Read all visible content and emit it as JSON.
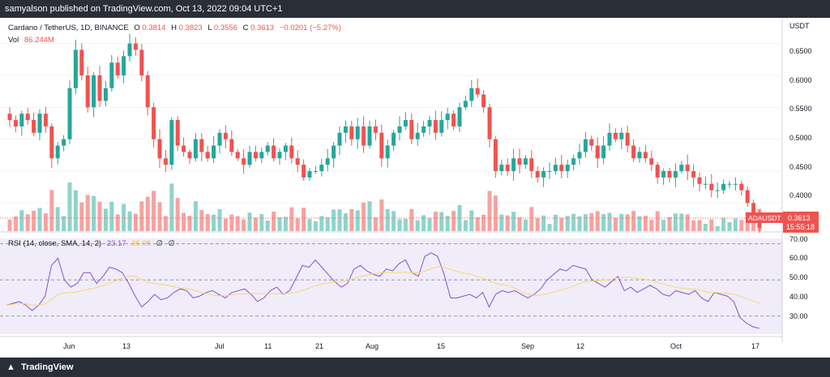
{
  "header": {
    "attribution": "samyalson published on TradingView.com, Oct 13, 2022 09:04 UTC+1"
  },
  "legend": {
    "symbol": "Cardano / TetherUS, 1D, BINANCE",
    "o_label": "O",
    "o_value": "0.3814",
    "h_label": "H",
    "h_value": "0.3823",
    "l_label": "L",
    "l_value": "0.3556",
    "c_label": "C",
    "c_value": "0.3613",
    "change": "−0.0201 (−5.27%)",
    "vol_label": "Vol",
    "vol_value": "86.244M"
  },
  "price_axis": {
    "currency": "USDT",
    "ticks": [
      "0.6500",
      "0.6000",
      "0.5500",
      "0.5000",
      "0.4500",
      "0.4000"
    ],
    "last_symbol": "ADAUSDT",
    "last_price": "0.3613",
    "countdown": "15:55:18"
  },
  "rsi_legend": {
    "label": "RSI (14, close, SMA, 14, 2)",
    "rsi_value": "23.17",
    "sma_value": "36.08",
    "extra1": "∅",
    "extra2": "∅"
  },
  "rsi_axis": {
    "ticks": [
      "70.00",
      "60.00",
      "50.00",
      "40.00",
      "30.00"
    ]
  },
  "time_axis": {
    "labels": [
      "Jun",
      "13",
      "Jul",
      "11",
      "21",
      "Aug",
      "15",
      "Sep",
      "12",
      "Oct",
      "17"
    ]
  },
  "footer": {
    "brand": "TradingView"
  },
  "colors": {
    "up": "#26a69a",
    "down": "#ef5350",
    "rsi": "#7e57c2",
    "rsi_ma": "#f5d76e",
    "vol_up": "#8fd3cb",
    "vol_down": "#f5a3a1"
  },
  "chart_data": {
    "type": "candlestick",
    "title": "Cardano / TetherUS, 1D, BINANCE",
    "ylabel": "USDT",
    "ylim": [
      0.37,
      0.68
    ],
    "closes": [
      0.53,
      0.52,
      0.54,
      0.53,
      0.51,
      0.54,
      0.52,
      0.47,
      0.49,
      0.5,
      0.58,
      0.64,
      0.6,
      0.55,
      0.6,
      0.56,
      0.58,
      0.62,
      0.6,
      0.63,
      0.65,
      0.64,
      0.6,
      0.55,
      0.5,
      0.47,
      0.46,
      0.53,
      0.49,
      0.48,
      0.47,
      0.5,
      0.48,
      0.47,
      0.49,
      0.51,
      0.5,
      0.48,
      0.47,
      0.46,
      0.48,
      0.47,
      0.48,
      0.49,
      0.47,
      0.48,
      0.49,
      0.47,
      0.46,
      0.44,
      0.45,
      0.45,
      0.46,
      0.47,
      0.49,
      0.51,
      0.52,
      0.5,
      0.52,
      0.49,
      0.52,
      0.51,
      0.47,
      0.49,
      0.51,
      0.52,
      0.53,
      0.5,
      0.51,
      0.52,
      0.53,
      0.51,
      0.53,
      0.54,
      0.52,
      0.55,
      0.56,
      0.58,
      0.57,
      0.55,
      0.5,
      0.45,
      0.46,
      0.45,
      0.47,
      0.46,
      0.47,
      0.45,
      0.44,
      0.45,
      0.45,
      0.46,
      0.45,
      0.46,
      0.47,
      0.48,
      0.5,
      0.49,
      0.47,
      0.49,
      0.51,
      0.5,
      0.51,
      0.49,
      0.47,
      0.48,
      0.47,
      0.46,
      0.44,
      0.45,
      0.44,
      0.45,
      0.46,
      0.45,
      0.44,
      0.43,
      0.43,
      0.42,
      0.42,
      0.43,
      0.43,
      0.43,
      0.42,
      0.4,
      0.38,
      0.361
    ],
    "rsi": [
      36,
      37,
      38,
      36,
      33,
      36,
      41,
      58,
      62,
      50,
      46,
      48,
      54,
      54,
      48,
      52,
      57,
      56,
      54,
      48,
      41,
      35,
      38,
      42,
      39,
      40,
      43,
      45,
      44,
      40,
      41,
      43,
      44,
      42,
      40,
      43,
      44,
      45,
      42,
      38,
      40,
      44,
      46,
      42,
      44,
      51,
      58,
      57,
      61,
      57,
      53,
      49,
      46,
      48,
      56,
      58,
      55,
      53,
      52,
      56,
      55,
      59,
      61,
      54,
      52,
      63,
      65,
      63,
      53,
      40,
      40,
      41,
      42,
      40,
      43,
      35,
      42,
      44,
      43,
      44,
      42,
      40,
      42,
      45,
      50,
      53,
      56,
      55,
      58,
      57,
      56,
      50,
      48,
      46,
      49,
      52,
      44,
      46,
      43,
      45,
      47,
      45,
      42,
      41,
      44,
      43,
      42,
      44,
      40,
      38,
      43,
      42,
      41,
      38,
      29,
      26,
      24,
      23.17
    ],
    "rsi_ylim": [
      20,
      73
    ],
    "rsi_levels": [
      70,
      50,
      30
    ],
    "x_labels": [
      "Jun",
      "13",
      "Jul",
      "11",
      "21",
      "Aug",
      "15",
      "Sep",
      "12",
      "Oct",
      "17"
    ],
    "last_close": 0.3613,
    "last_volume": "86.244M"
  }
}
